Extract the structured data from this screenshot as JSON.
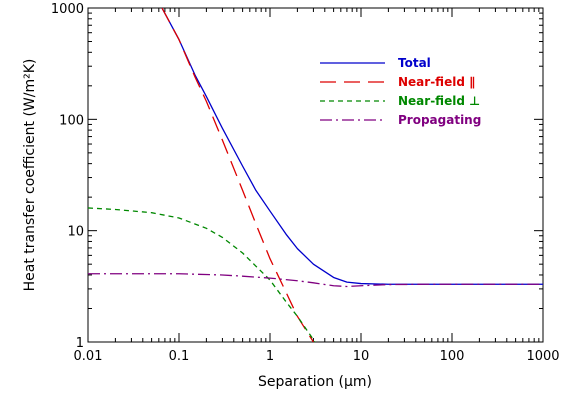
{
  "chart_data": {
    "type": "line",
    "xlabel": "Separation (μm)",
    "ylabel": "Heat transfer coefficient (W/m²K)",
    "xscale": "log",
    "yscale": "log",
    "xlim": [
      0.01,
      1000
    ],
    "ylim": [
      1,
      1000
    ],
    "x_ticks": [
      "0.01",
      "0.1",
      "1",
      "10",
      "100",
      "1000"
    ],
    "y_ticks": [
      "1",
      "10",
      "100",
      "1000"
    ],
    "legend_position": "top-right",
    "series": [
      {
        "name": "Total",
        "color": "#0000cc",
        "dash": "solid",
        "x": [
          0.065,
          0.1,
          0.15,
          0.2,
          0.3,
          0.5,
          0.7,
          1,
          1.5,
          2,
          3,
          5,
          7,
          10,
          20,
          50,
          100,
          300,
          1000
        ],
        "y": [
          1000,
          520,
          250,
          160,
          83,
          38,
          23,
          15,
          9.3,
          6.9,
          5.0,
          3.8,
          3.45,
          3.35,
          3.3,
          3.3,
          3.3,
          3.3,
          3.3
        ]
      },
      {
        "name": "Near-field ∥",
        "color": "#dd0000",
        "dash": "longdash",
        "x": [
          0.065,
          0.1,
          0.15,
          0.2,
          0.3,
          0.5,
          0.7,
          1,
          1.5,
          2,
          3,
          3.5
        ],
        "y": [
          1000,
          520,
          240,
          145,
          65,
          23,
          11.5,
          5.6,
          2.8,
          1.7,
          1.0,
          0.85
        ]
      },
      {
        "name": "Near-field ⊥",
        "color": "#008800",
        "dash": "shortdash",
        "x": [
          0.01,
          0.02,
          0.05,
          0.1,
          0.2,
          0.3,
          0.5,
          0.7,
          1,
          1.5,
          2,
          3,
          3.5
        ],
        "y": [
          16,
          15.5,
          14.5,
          13,
          10.5,
          8.7,
          6.3,
          4.8,
          3.6,
          2.3,
          1.7,
          1.05,
          0.85
        ]
      },
      {
        "name": "Propagating",
        "color": "#800080",
        "dash": "dashdot",
        "x": [
          0.01,
          0.03,
          0.1,
          0.3,
          0.5,
          1,
          2,
          3,
          5,
          7,
          10,
          20,
          50,
          100,
          300,
          1000
        ],
        "y": [
          4.1,
          4.1,
          4.1,
          4.0,
          3.9,
          3.75,
          3.55,
          3.4,
          3.2,
          3.15,
          3.2,
          3.28,
          3.3,
          3.3,
          3.3,
          3.3
        ]
      }
    ]
  }
}
